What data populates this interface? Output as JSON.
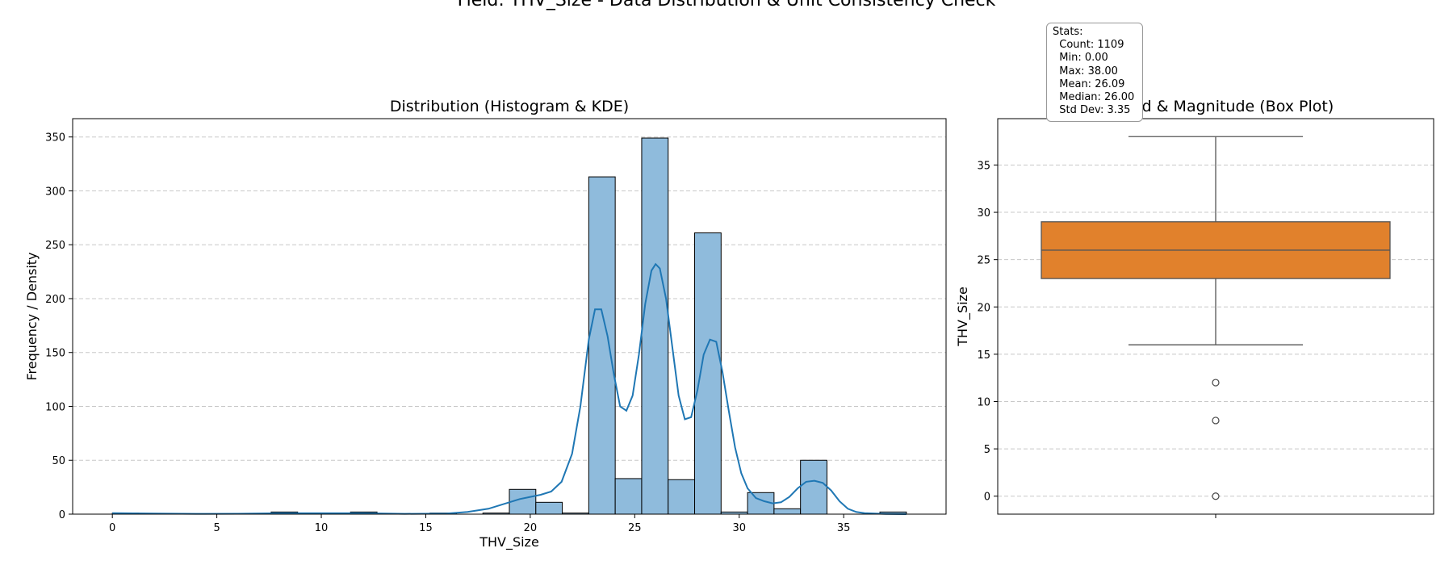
{
  "figure": {
    "suptitle": "Field: THV_Size - Data Distribution & Unit Consistency Check"
  },
  "stats": {
    "header": "Stats:",
    "lines": [
      "  Count: 1109",
      "  Min: 0.00",
      "  Max: 38.00",
      "  Mean: 26.09",
      "  Median: 26.00",
      "  Std Dev: 3.35"
    ]
  },
  "colors": {
    "hist_fill": "#8fbbdc",
    "kde_line": "#1f77b4",
    "box_fill": "#e1812c",
    "grid": "#c8c8c8",
    "whisker": "#555555"
  },
  "chart_data": [
    {
      "type": "bar",
      "title": "Distribution (Histogram & KDE)",
      "xlabel": "THV_Size",
      "ylabel": "Frequency / Density",
      "xlim": [
        -1.9,
        39.9
      ],
      "ylim": [
        0,
        367
      ],
      "xticks": [
        0,
        5,
        10,
        15,
        20,
        25,
        30,
        35
      ],
      "yticks": [
        0,
        50,
        100,
        150,
        200,
        250,
        300,
        350
      ],
      "grid": "y",
      "bin_edges": [
        0,
        1.2667,
        2.5333,
        3.8,
        5.0667,
        6.3333,
        7.6,
        8.8667,
        10.1333,
        11.4,
        12.6667,
        13.9333,
        15.2,
        16.4667,
        17.7333,
        19,
        20.2667,
        21.5333,
        22.8,
        24.0667,
        25.3333,
        26.6,
        27.8667,
        29.1333,
        30.4,
        31.6667,
        32.9333,
        34.2,
        35.4667,
        36.7333,
        38
      ],
      "values": [
        1,
        0,
        0,
        0,
        0,
        0,
        2,
        0,
        0,
        2,
        0,
        0,
        1,
        0,
        1,
        23,
        11,
        1,
        313,
        33,
        349,
        32,
        261,
        2,
        20,
        5,
        50,
        0,
        0,
        2
      ],
      "kde": {
        "x": [
          0,
          2,
          4,
          6,
          8,
          10,
          12,
          14,
          16,
          17,
          18,
          19,
          19.5,
          20,
          20.5,
          21,
          21.5,
          22,
          22.4,
          22.8,
          23.1,
          23.4,
          23.7,
          24,
          24.3,
          24.6,
          24.9,
          25.2,
          25.5,
          25.8,
          26,
          26.2,
          26.5,
          26.8,
          27.1,
          27.4,
          27.7,
          28,
          28.3,
          28.6,
          28.9,
          29.2,
          29.5,
          29.8,
          30.1,
          30.4,
          30.8,
          31.2,
          31.6,
          32,
          32.4,
          32.8,
          33.2,
          33.6,
          34,
          34.4,
          34.8,
          35.2,
          35.6,
          36,
          36.5,
          37,
          38
        ],
        "y": [
          1,
          0.5,
          0.3,
          0.4,
          0.8,
          0.8,
          0.8,
          0.3,
          0.5,
          2,
          5,
          11,
          14,
          16,
          18,
          21,
          30,
          56,
          100,
          162,
          190,
          190,
          165,
          130,
          100,
          96,
          110,
          148,
          195,
          226,
          232,
          228,
          200,
          155,
          110,
          88,
          90,
          115,
          148,
          162,
          160,
          132,
          96,
          62,
          38,
          24,
          15,
          12,
          10,
          11,
          16,
          24,
          30,
          31,
          29,
          22,
          12,
          5,
          2,
          1,
          0.5,
          0.2,
          0
        ]
      }
    },
    {
      "type": "box",
      "title": "Spread & Magnitude (Box Plot)",
      "ylabel": "THV_Size",
      "ylim": [
        -1.9,
        39.9
      ],
      "yticks": [
        0,
        5,
        10,
        15,
        20,
        25,
        30,
        35
      ],
      "grid": "y",
      "whisker_low": 16,
      "q1": 23,
      "median": 26,
      "q3": 29,
      "whisker_high": 38,
      "outliers": [
        12,
        8,
        0
      ]
    }
  ]
}
